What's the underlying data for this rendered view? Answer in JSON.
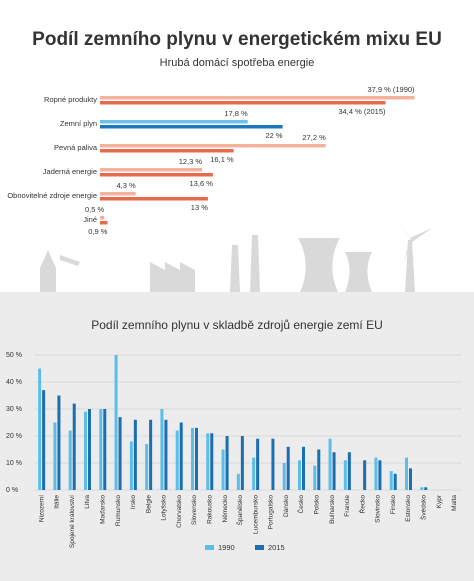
{
  "chart_data": [
    {
      "type": "bar",
      "orientation": "horizontal",
      "title": "Podíl zemního plynu v energetickém mixu EU",
      "subtitle": "Hrubá domácí spotřeba energie",
      "categories": [
        "Ropné produkty",
        "Zemní plyn",
        "Pevná paliva",
        "Jaderná energie",
        "Obnovitelné zdroje energie",
        "Jiné"
      ],
      "xlim": [
        0,
        40
      ],
      "series": [
        {
          "colors": [
            "#f3b29b",
            "#6fc0e8",
            "#f3b29b",
            "#f3b29b",
            "#f3b29b",
            "#f3b29b"
          ],
          "values": [
            37.9,
            17.8,
            27.2,
            12.3,
            4.3,
            0.5
          ],
          "value_labels": [
            "37,9 % (1990)",
            "17,8 %",
            "27,2 %",
            "12,3 %",
            "4,3 %",
            "0,5 %"
          ]
        },
        {
          "colors": [
            "#e86a4e",
            "#1b78bd",
            "#e86a4e",
            "#e86a4e",
            "#e86a4e",
            "#e86a4e"
          ],
          "values": [
            34.4,
            22,
            16.1,
            13.6,
            13,
            0.9
          ],
          "value_labels": [
            "34,4 % (2015)",
            "22 %",
            "16,1 %",
            "13,6 %",
            "13 %",
            "0,9 %"
          ]
        }
      ]
    },
    {
      "type": "bar",
      "title": "Podíl zemního plynu v skladbě zdrojů energie zemí EU",
      "categories": [
        "Nizozemí",
        "Itálie",
        "Spojené království",
        "Litva",
        "Maďarsko",
        "Rumunsko",
        "Irsko",
        "Belgie",
        "Lotyšsko",
        "Chorvatsko",
        "Slovensko",
        "Rakousko",
        "Německo",
        "Španělsko",
        "Lucembursko",
        "Portugalsko",
        "Dánsko",
        "Česko",
        "Polsko",
        "Bulharsko",
        "Francie",
        "Řecko",
        "Slovinsko",
        "Finsko",
        "Estonsko",
        "Švédsko",
        "Kypr",
        "Malta"
      ],
      "ylim": [
        0,
        50
      ],
      "yticks": [
        {
          "value": 0,
          "label": "0 %"
        },
        {
          "value": 10,
          "label": "10 %"
        },
        {
          "value": 20,
          "label": "20 %"
        },
        {
          "value": 30,
          "label": "30 %"
        },
        {
          "value": 40,
          "label": "40 %"
        },
        {
          "value": 50,
          "label": "50 %"
        }
      ],
      "series": [
        {
          "name": "1990",
          "color": "#5bbde8",
          "values": [
            45,
            25,
            22,
            29,
            30,
            50,
            18,
            17,
            30,
            22,
            23,
            21,
            15,
            6,
            12,
            0,
            10,
            11,
            9,
            19,
            11,
            0,
            12,
            7,
            12,
            1,
            0,
            0
          ]
        },
        {
          "name": "2015",
          "color": "#1b6fb0",
          "values": [
            37,
            35,
            32,
            30,
            30,
            27,
            26,
            26,
            26,
            25,
            23,
            21,
            20,
            20,
            19,
            19,
            16,
            16,
            15,
            14,
            14,
            11,
            11,
            6,
            8,
            1,
            0,
            0
          ]
        }
      ]
    }
  ]
}
